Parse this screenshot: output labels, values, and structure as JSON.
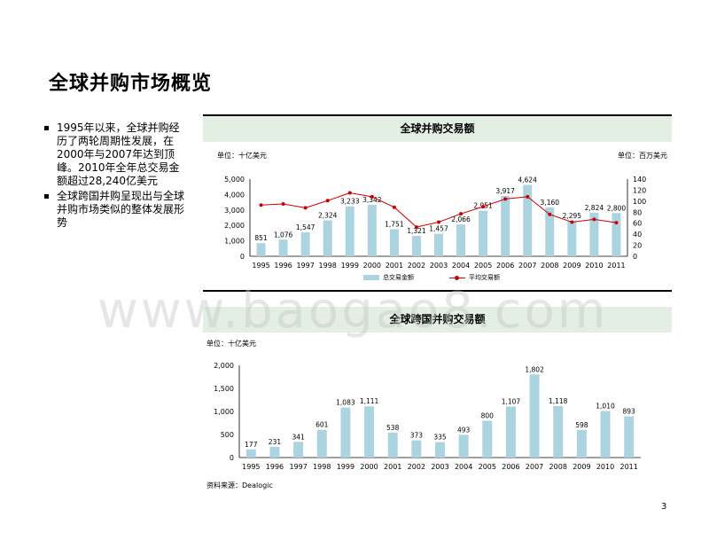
{
  "page_title": "全球并购市场概览",
  "bullets": [
    "1995年以来，全球并购经历了两轮周期性发展，在2000年与2007年达到顶峰。2010年全年总交易金额超过28,240亿美元",
    "全球跨国并购呈现出与全球并购市场类似的整体发展形势"
  ],
  "chart1_header": "全球并购交易额",
  "chart2_header": "全球跨国并购交易额",
  "source": "资料来源：Dealogic",
  "page_number": "3",
  "watermark": "www.baogao8.com",
  "colors": {
    "bar": "#abd4e0",
    "line": "#cc0000",
    "header_bg": "#e2efe2"
  },
  "chart_data": [
    {
      "type": "bar",
      "title": "全球并购交易额",
      "unit_left": "单位：十亿美元",
      "unit_right": "单位：百万美元",
      "categories": [
        "1995",
        "1996",
        "1997",
        "1998",
        "1999",
        "2000",
        "2001",
        "2002",
        "2003",
        "2004",
        "2005",
        "2006",
        "2007",
        "2008",
        "2009",
        "2010",
        "2011"
      ],
      "series": [
        {
          "name": "总交易金额",
          "type": "bar",
          "axis": "left",
          "values": [
            851,
            1076,
            1547,
            2324,
            3233,
            3342,
            1751,
            1321,
            1457,
            2066,
            2951,
            3917,
            4624,
            3160,
            2295,
            2824,
            2800
          ]
        },
        {
          "name": "平均交易额",
          "type": "line",
          "axis": "right",
          "values": [
            93,
            95,
            88,
            101,
            115,
            108,
            89,
            53,
            62,
            77,
            90,
            104,
            108,
            76,
            62,
            67,
            61
          ]
        }
      ],
      "ylim_left": [
        0,
        5000
      ],
      "yticks_left": [
        "0",
        "1,000",
        "2,000",
        "3,000",
        "4,000",
        "5,000"
      ],
      "ylim_right": [
        0,
        140
      ],
      "yticks_right": [
        "0",
        "20",
        "40",
        "60",
        "80",
        "100",
        "120",
        "140"
      ],
      "data_labels": [
        "851",
        "1,076",
        "1,547",
        "2,324",
        "3,233",
        "3,342",
        "1,751",
        "1,321",
        "1,457",
        "2,066",
        "2,951",
        "3,917",
        "4,624",
        "3,160",
        "2,295",
        "2,824",
        "2,800"
      ]
    },
    {
      "type": "bar",
      "title": "全球跨国并购交易额",
      "unit_left": "单位：十亿美元",
      "categories": [
        "1995",
        "1996",
        "1997",
        "1998",
        "1999",
        "2000",
        "2001",
        "2002",
        "2003",
        "2004",
        "2005",
        "2006",
        "2007",
        "2008",
        "2009",
        "2010",
        "2011"
      ],
      "values": [
        177,
        231,
        341,
        601,
        1083,
        1111,
        538,
        373,
        335,
        493,
        800,
        1107,
        1802,
        1118,
        598,
        1010,
        893
      ],
      "ylim": [
        0,
        2000
      ],
      "yticks": [
        "0",
        "500",
        "1,000",
        "1,500",
        "2,000"
      ],
      "data_labels": [
        "177",
        "231",
        "341",
        "601",
        "1,083",
        "1,111",
        "538",
        "373",
        "335",
        "493",
        "800",
        "1,107",
        "1,802",
        "1,118",
        "598",
        "1,010",
        "893"
      ]
    }
  ]
}
